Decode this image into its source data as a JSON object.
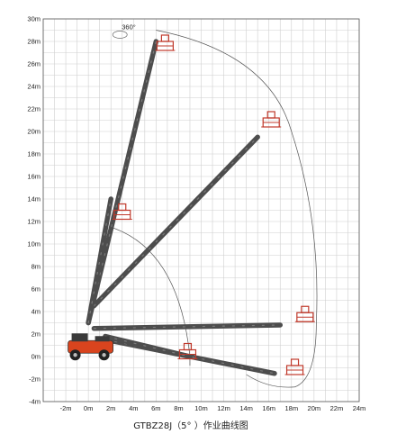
{
  "caption": "GTBZ28J（5° ）作业曲线图",
  "rotation_label": "360°",
  "chart_data": {
    "type": "diagram",
    "x_unit": "m",
    "y_unit": "m",
    "xlim": [
      -4,
      24
    ],
    "ylim": [
      -4,
      30
    ],
    "x_ticks": [
      "-2m",
      "0m",
      "2m",
      "4m",
      "6m",
      "8m",
      "10m",
      "12m",
      "14m",
      "16m",
      "18m",
      "20m",
      "22m",
      "24m"
    ],
    "y_ticks": [
      "30m",
      "28m",
      "26m",
      "24m",
      "22m",
      "20m",
      "18m",
      "16m",
      "14m",
      "12m",
      "10m",
      "8m",
      "6m",
      "4m",
      "2m",
      "0m",
      "-2m",
      "-4m"
    ],
    "boom_positions": [
      {
        "from": [
          0,
          3
        ],
        "to": [
          6,
          28
        ]
      },
      {
        "from": [
          0.5,
          4.5
        ],
        "to": [
          15,
          19.5
        ]
      },
      {
        "from": [
          0,
          3
        ],
        "to": [
          2,
          14
        ]
      },
      {
        "from": [
          0.5,
          2.5
        ],
        "to": [
          17,
          2.8
        ]
      },
      {
        "from": [
          1.5,
          1.5
        ],
        "to": [
          16.5,
          -1.5
        ]
      },
      {
        "from": [
          1.5,
          1.8
        ],
        "to": [
          9,
          0
        ]
      }
    ],
    "platforms": [
      [
        6.8,
        27.2
      ],
      [
        16.2,
        20.4
      ],
      [
        3,
        12.2
      ],
      [
        19.2,
        3.1
      ],
      [
        18.3,
        -1.6
      ],
      [
        8.8,
        -0.2
      ]
    ],
    "colors": {
      "boom": "#4d4d4d",
      "platform": "#c0392b",
      "chassis": "#d9441e"
    }
  }
}
